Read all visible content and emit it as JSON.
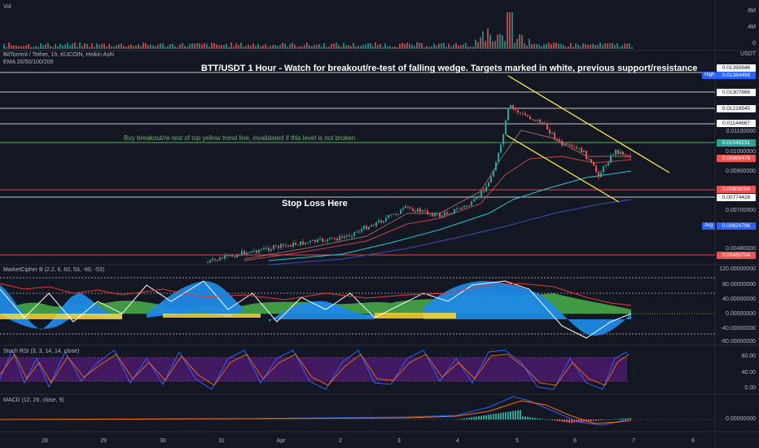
{
  "volume_pane": {
    "label": "Vol",
    "axis_labels": [
      "8M",
      "4M",
      "0"
    ]
  },
  "header": {
    "symbol_line": "BitTorrent / Tether, 1h, KUCOIN, Heikin Ashi",
    "indicator_line": "EMA 20/50/100/200",
    "currency": "USDT"
  },
  "annotations": {
    "title": "BTT/USDT 1 Hour - Watch for breakout/re-test of falling wedge. Targets marked in white, previous support/resistance",
    "buy_note": "Buy breakout/re-test of top yellow trend line, invalidated if this level is not broken",
    "stop_loss": "Stop Loss  Here"
  },
  "price_levels": [
    {
      "value": "0.01390646",
      "style": "white"
    },
    {
      "value": "0.01384499",
      "style": "blue",
      "side": "High"
    },
    {
      "value": "0.01307866",
      "style": "white"
    },
    {
      "value": "0.01219545",
      "style": "white"
    },
    {
      "value": "0.01144667",
      "style": "white"
    },
    {
      "value": "0.01048231",
      "style": "green"
    },
    {
      "value": "0.00969476",
      "style": "red"
    },
    {
      "value": "0.00808094",
      "style": "red"
    },
    {
      "value": "0.00774428",
      "style": "white"
    },
    {
      "value": "0.00624796",
      "style": "blue",
      "side": "Avg"
    },
    {
      "value": "0.00480704",
      "style": "red"
    }
  ],
  "price_axis_labels": [
    "0.01100000",
    "0.01000000",
    "0.00900000",
    "0.00700000",
    "0.00480000"
  ],
  "marketcipher": {
    "label": "MarketCipher B (2.2, 6, 60, 53, -60, -53)",
    "axis_labels": [
      "120.00000000",
      "80.00000000",
      "40.00000000",
      "0.00000000",
      "-40.00000000",
      "-80.00000000"
    ]
  },
  "stoch_rsi": {
    "label": "Stoch RSI (3, 3, 14, 14, close)",
    "axis_labels": [
      "80.00",
      "40.00",
      "0.00"
    ]
  },
  "macd": {
    "label": "MACD (12, 26, close, 9)",
    "axis_labels": [
      "0.00000000"
    ]
  },
  "time_axis": [
    "28",
    "29",
    "30",
    "31",
    "Apr",
    "2",
    "3",
    "4",
    "5",
    "6",
    "7",
    "8"
  ],
  "colors": {
    "background": "#131722",
    "up": "#26a69a",
    "down": "#ef5350",
    "wedge": "#ffeb3b",
    "stoch_band": "#4a1a6b"
  }
}
